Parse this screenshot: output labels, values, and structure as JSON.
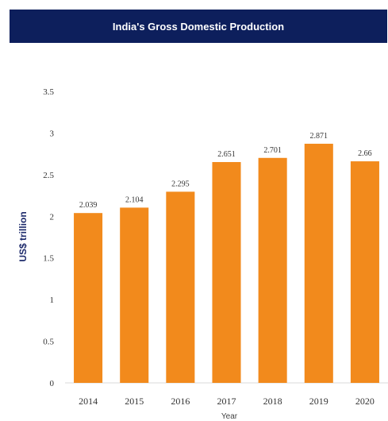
{
  "chart_data": {
    "type": "bar",
    "title": "India's Gross Domestic Production",
    "xlabel": "Year",
    "ylabel": "US$ trillion",
    "categories": [
      "2014",
      "2015",
      "2016",
      "2017",
      "2018",
      "2019",
      "2020"
    ],
    "values": [
      2.039,
      2.104,
      2.295,
      2.651,
      2.701,
      2.871,
      2.66
    ],
    "data_labels": [
      "2.039",
      "2.104",
      "2.295",
      "2.651",
      "2.701",
      "2.871",
      "2.66"
    ],
    "ylim": [
      0,
      3.5
    ],
    "yticks": [
      "0",
      "0.5",
      "1",
      "1.5",
      "2",
      "2.5",
      "3",
      "3.5"
    ],
    "grid": false,
    "colors": {
      "bar": "#f28a1c",
      "banner": "#0d1f5c",
      "ylabel": "#1d2a6b"
    }
  }
}
